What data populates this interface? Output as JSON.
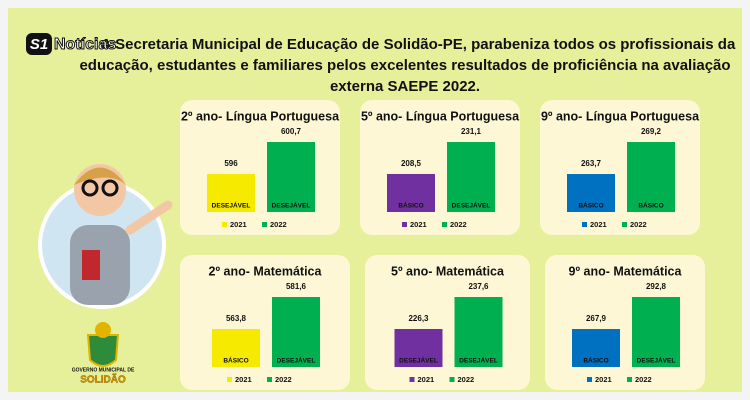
{
  "logo": {
    "badge": "S1",
    "text": "Notícias"
  },
  "title": [
    "A Secretaria Municipal de Educação de Solidão-PE, parabeniza todos os profissionais da",
    "educação, estudantes e familiares pelos excelentes resultados de proficiência na avaliação",
    "externa SAEPE 2022."
  ],
  "emblem_text": [
    "GOVERNO MUNICIPAL DE",
    "SOLIDÃO"
  ],
  "chart_data": [
    {
      "type": "bar",
      "title": "2º ano- Língua Portuguesa",
      "series": [
        {
          "name": "2021",
          "color": "#f5ea00",
          "values": [
            596
          ],
          "value_labels": [
            "596"
          ],
          "levels": [
            "DESEJÁVEL"
          ]
        },
        {
          "name": "2022",
          "color": "#00b050",
          "values": [
            600.7
          ],
          "value_labels": [
            "600,7"
          ],
          "levels": [
            "DESEJÁVEL"
          ]
        }
      ]
    },
    {
      "type": "bar",
      "title": "5º ano- Língua Portuguesa",
      "series": [
        {
          "name": "2021",
          "color": "#7030a0",
          "values": [
            208.5
          ],
          "value_labels": [
            "208,5"
          ],
          "levels": [
            "BÁSICO"
          ]
        },
        {
          "name": "2022",
          "color": "#00b050",
          "values": [
            231.1
          ],
          "value_labels": [
            "231,1"
          ],
          "levels": [
            "DESEJÁVEL"
          ]
        }
      ]
    },
    {
      "type": "bar",
      "title": "9º ano- Língua Portuguesa",
      "series": [
        {
          "name": "2021",
          "color": "#0070c0",
          "values": [
            263.7
          ],
          "value_labels": [
            "263,7"
          ],
          "levels": [
            "BÁSICO"
          ]
        },
        {
          "name": "2022",
          "color": "#00b050",
          "values": [
            269.2
          ],
          "value_labels": [
            "269,2"
          ],
          "levels": [
            "BÁSICO"
          ]
        }
      ]
    },
    {
      "type": "bar",
      "title": "2º ano- Matemática",
      "series": [
        {
          "name": "2021",
          "color": "#f5ea00",
          "values": [
            563.8
          ],
          "value_labels": [
            "563,8"
          ],
          "levels": [
            "BÁSICO"
          ]
        },
        {
          "name": "2022",
          "color": "#00b050",
          "values": [
            581.6
          ],
          "value_labels": [
            "581,6"
          ],
          "levels": [
            "DESEJÁVEL"
          ]
        }
      ]
    },
    {
      "type": "bar",
      "title": "5º ano- Matemática",
      "series": [
        {
          "name": "2021",
          "color": "#7030a0",
          "values": [
            226.3
          ],
          "value_labels": [
            "226,3"
          ],
          "levels": [
            "DESEJÁVEL"
          ]
        },
        {
          "name": "2022",
          "color": "#00b050",
          "values": [
            237.6
          ],
          "value_labels": [
            "237,6"
          ],
          "levels": [
            "DESEJÁVEL"
          ]
        }
      ]
    },
    {
      "type": "bar",
      "title": "9º ano- Matemática",
      "series": [
        {
          "name": "2021",
          "color": "#0070c0",
          "values": [
            267.9
          ],
          "value_labels": [
            "267,9"
          ],
          "levels": [
            "BÁSICO"
          ]
        },
        {
          "name": "2022",
          "color": "#00b050",
          "values": [
            292.8
          ],
          "value_labels": [
            "292,8"
          ],
          "levels": [
            "DESEJÁVEL"
          ]
        }
      ]
    }
  ]
}
